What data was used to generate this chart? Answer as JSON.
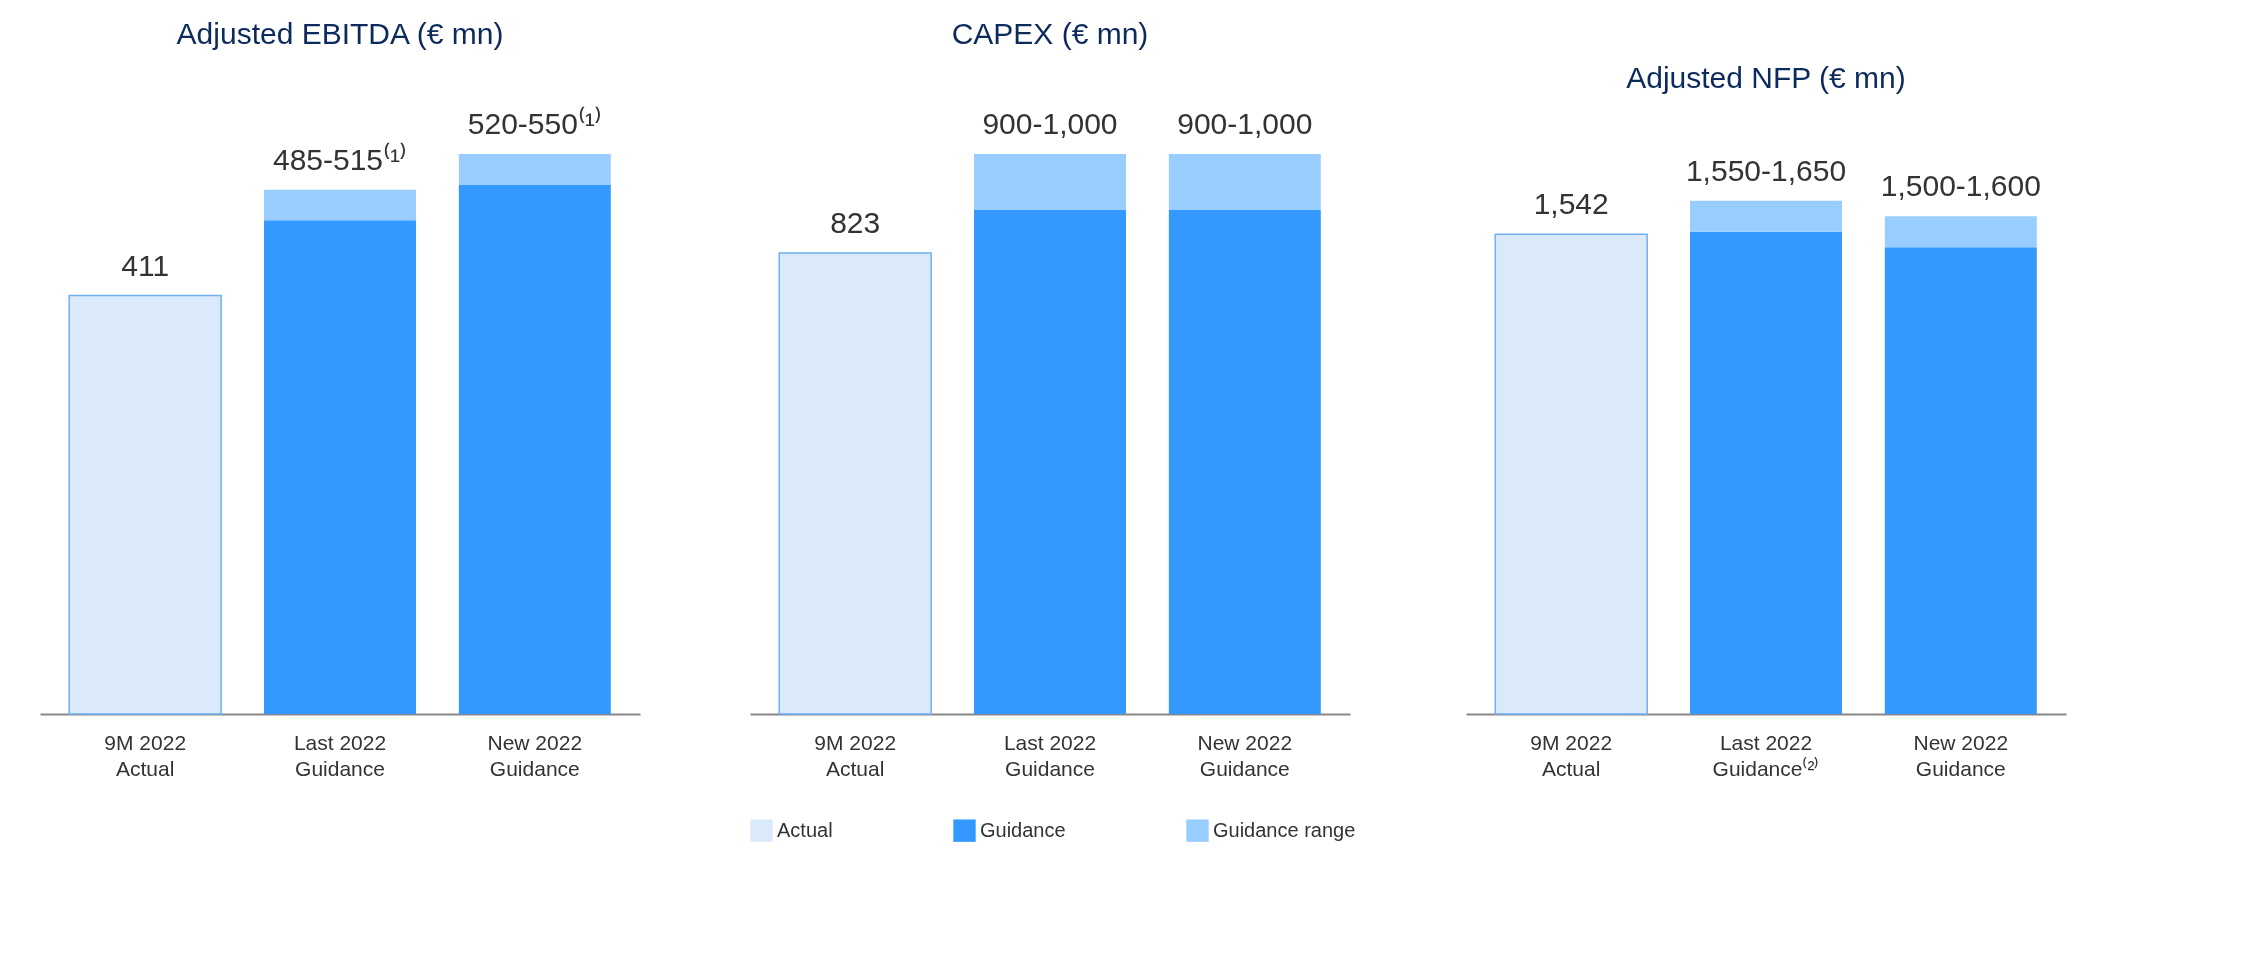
{
  "chart_data": [
    {
      "type": "bar",
      "title": "Adjusted EBITDA (€ mn)",
      "stacked": true,
      "categories": [
        "9M 2022\nActual",
        "Last 2022\nGuidance",
        "New 2022\nGuidance"
      ],
      "series": [
        {
          "color": "#dbeafa",
          "values": [
            411,
            null,
            null
          ],
          "value_labels": [
            "411",
            null,
            null
          ]
        },
        {
          "color": "#3399ff",
          "values": [
            null,
            485,
            520
          ]
        },
        {
          "color": "#99ccff",
          "values": [
            null,
            30,
            30
          ],
          "value_labels": [
            null,
            "485-515⁽¹⁾",
            "520-550⁽¹⁾"
          ]
        }
      ]
    },
    {
      "type": "bar",
      "title": "CAPEX (€ mn)",
      "stacked": true,
      "legend": "bottom",
      "categories": [
        "9M 2022\nActual",
        "Last 2022\nGuidance",
        "New 2022\nGuidance"
      ],
      "series": [
        {
          "name": "Actual",
          "color": "#dbeafa",
          "values": [
            823,
            null,
            null
          ],
          "value_labels": [
            "823",
            null,
            null
          ]
        },
        {
          "name": "Guidance",
          "color": "#3399ff",
          "values": [
            null,
            900,
            900
          ]
        },
        {
          "name": "Guidance range",
          "color": "#99ccff",
          "values": [
            null,
            100,
            100
          ],
          "value_labels": [
            null,
            "900-1,000",
            "900-1,000"
          ]
        }
      ]
    },
    {
      "type": "bar",
      "title": "Adjusted NFP (€ mn)",
      "stacked": true,
      "categories": [
        "9M 2022\nActual",
        "Last 2022\nGuidance⁽²⁾",
        "New 2022\nGuidance"
      ],
      "series": [
        {
          "color": "#dbeafa",
          "values": [
            1542,
            null,
            null
          ],
          "value_labels": [
            "1,542",
            null,
            null
          ]
        },
        {
          "color": "#3399ff",
          "values": [
            null,
            1550,
            1500
          ]
        },
        {
          "color": "#99ccff",
          "values": [
            null,
            100,
            100
          ],
          "value_labels": [
            null,
            "1,550-1,650",
            "1,500-1,600"
          ]
        }
      ]
    }
  ]
}
